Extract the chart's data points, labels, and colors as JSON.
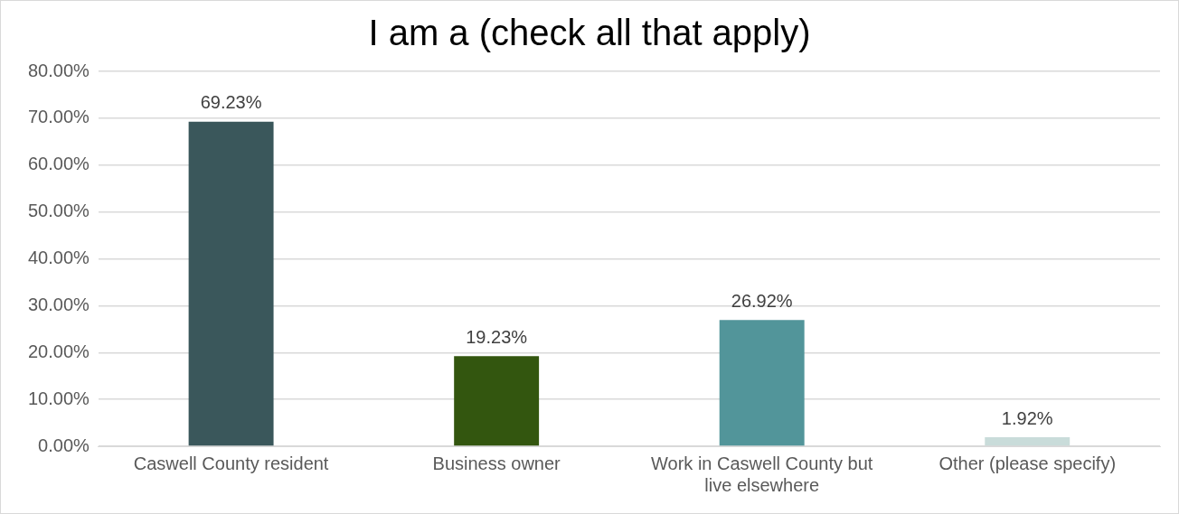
{
  "chart_data": {
    "type": "bar",
    "title": "I am a (check all that apply)",
    "categories": [
      "Caswell County resident",
      "Business owner",
      "Work in Caswell County but live elsewhere",
      "Other (please specify)"
    ],
    "values": [
      69.23,
      19.23,
      26.92,
      1.92
    ],
    "colors": [
      "#3a575b",
      "#33560f",
      "#52959a",
      "#c9dcda"
    ],
    "value_labels": [
      "69.23%",
      "19.23%",
      "26.92%",
      "1.92%"
    ],
    "ylim": [
      0,
      80
    ],
    "yticks": [
      {
        "value": 0,
        "label": "0.00%"
      },
      {
        "value": 10,
        "label": "10.00%"
      },
      {
        "value": 20,
        "label": "20.00%"
      },
      {
        "value": 30,
        "label": "30.00%"
      },
      {
        "value": 40,
        "label": "40.00%"
      },
      {
        "value": 50,
        "label": "50.00%"
      },
      {
        "value": 60,
        "label": "60.00%"
      },
      {
        "value": 70,
        "label": "70.00%"
      },
      {
        "value": 80,
        "label": "80.00%"
      }
    ],
    "grid": "y",
    "legend": false
  }
}
